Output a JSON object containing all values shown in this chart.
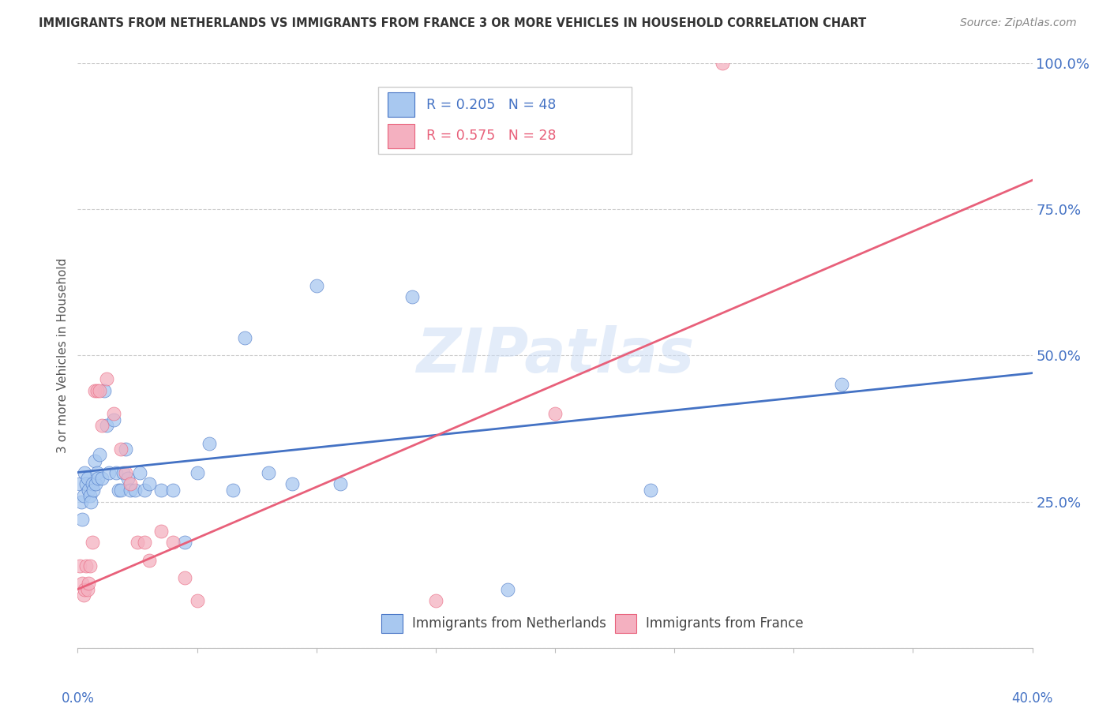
{
  "title": "IMMIGRANTS FROM NETHERLANDS VS IMMIGRANTS FROM FRANCE 3 OR MORE VEHICLES IN HOUSEHOLD CORRELATION CHART",
  "source": "Source: ZipAtlas.com",
  "ylabel": "3 or more Vehicles in Household",
  "watermark": "ZIPatlas",
  "legend_netherlands": "Immigrants from Netherlands",
  "legend_france": "Immigrants from France",
  "R_netherlands": 0.205,
  "N_netherlands": 48,
  "R_france": 0.575,
  "N_france": 28,
  "color_netherlands": "#a8c8f0",
  "color_france": "#f4b0c0",
  "line_color_netherlands": "#4472c4",
  "line_color_france": "#e8607a",
  "text_color_blue": "#4472c4",
  "text_color_dark": "#333333",
  "text_color_grey": "#888888",
  "nl_line_y0": 30.0,
  "nl_line_y40": 47.0,
  "fr_line_y0": 10.0,
  "fr_line_y40": 80.0,
  "netherlands_x": [
    0.1,
    0.15,
    0.2,
    0.25,
    0.3,
    0.35,
    0.4,
    0.45,
    0.5,
    0.55,
    0.6,
    0.65,
    0.7,
    0.75,
    0.8,
    0.85,
    0.9,
    1.0,
    1.1,
    1.2,
    1.3,
    1.5,
    1.6,
    1.7,
    1.8,
    1.9,
    2.0,
    2.1,
    2.2,
    2.4,
    2.6,
    2.8,
    3.0,
    3.5,
    4.0,
    4.5,
    5.0,
    5.5,
    6.5,
    7.0,
    8.0,
    9.0,
    10.0,
    11.0,
    14.0,
    18.0,
    24.0,
    32.0
  ],
  "netherlands_y": [
    28,
    25,
    22,
    26,
    30,
    28,
    29,
    27,
    26,
    25,
    28,
    27,
    32,
    28,
    30,
    29,
    33,
    29,
    44,
    38,
    30,
    39,
    30,
    27,
    27,
    30,
    34,
    29,
    27,
    27,
    30,
    27,
    28,
    27,
    27,
    18,
    30,
    35,
    27,
    53,
    30,
    28,
    62,
    28,
    60,
    10,
    27,
    45
  ],
  "france_x": [
    0.1,
    0.2,
    0.25,
    0.3,
    0.35,
    0.4,
    0.45,
    0.5,
    0.6,
    0.7,
    0.8,
    0.9,
    1.0,
    1.2,
    1.5,
    1.8,
    2.0,
    2.2,
    2.5,
    2.8,
    3.0,
    3.5,
    4.0,
    4.5,
    5.0,
    15.0,
    20.0,
    27.0
  ],
  "france_y": [
    14,
    11,
    9,
    10,
    14,
    10,
    11,
    14,
    18,
    44,
    44,
    44,
    38,
    46,
    40,
    34,
    30,
    28,
    18,
    18,
    15,
    20,
    18,
    12,
    8,
    8,
    40,
    100
  ],
  "xlim": [
    0,
    40
  ],
  "ylim": [
    0,
    100
  ],
  "xtick_positions": [
    0,
    5,
    10,
    15,
    20,
    25,
    30,
    35,
    40
  ],
  "ytick_grid": [
    0,
    25,
    50,
    75,
    100
  ],
  "figsize": [
    14.06,
    8.92
  ],
  "dpi": 100
}
